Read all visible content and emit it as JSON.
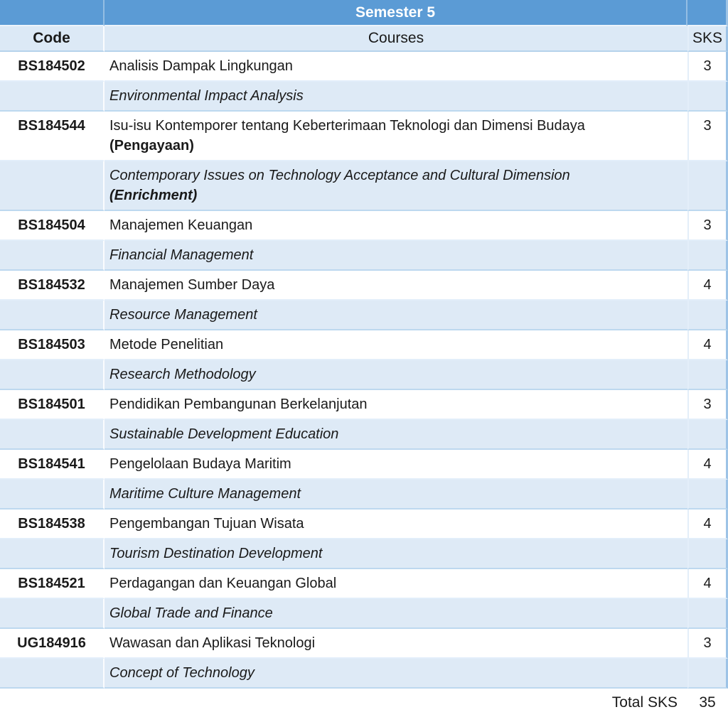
{
  "table": {
    "title": "Semester 5",
    "columns": [
      "Code",
      "Courses",
      "SKS"
    ],
    "rows": [
      {
        "code": "BS184502",
        "name": "Analisis Dampak Lingkungan",
        "name_note": "",
        "sks": "3",
        "translation": "Environmental Impact Analysis",
        "translation_note": ""
      },
      {
        "code": "BS184544",
        "name": "Isu-isu Kontemporer tentang Keberterimaan Teknologi dan Dimensi Budaya",
        "name_note": "(Pengayaan)",
        "sks": "3",
        "translation": "Contemporary Issues on Technology Acceptance and Cultural Dimension",
        "translation_note": "(Enrichment)"
      },
      {
        "code": "BS184504",
        "name": "Manajemen Keuangan",
        "name_note": "",
        "sks": "3",
        "translation": "Financial Management",
        "translation_note": ""
      },
      {
        "code": "BS184532",
        "name": "Manajemen Sumber Daya",
        "name_note": "",
        "sks": "4",
        "translation": "Resource Management",
        "translation_note": ""
      },
      {
        "code": "BS184503",
        "name": "Metode Penelitian",
        "name_note": "",
        "sks": "4",
        "translation": "Research Methodology",
        "translation_note": ""
      },
      {
        "code": "BS184501",
        "name": "Pendidikan Pembangunan Berkelanjutan",
        "name_note": "",
        "sks": "3",
        "translation": "Sustainable Development Education",
        "translation_note": ""
      },
      {
        "code": "BS184541",
        "name": "Pengelolaan Budaya Maritim",
        "name_note": "",
        "sks": "4",
        "translation": "Maritime Culture Management",
        "translation_note": ""
      },
      {
        "code": "BS184538",
        "name": "Pengembangan Tujuan Wisata",
        "name_note": "",
        "sks": "4",
        "translation": "Tourism Destination Development",
        "translation_note": ""
      },
      {
        "code": "BS184521",
        "name": "Perdagangan dan Keuangan Global",
        "name_note": "",
        "sks": "4",
        "translation": "Global Trade and Finance",
        "translation_note": ""
      },
      {
        "code": "UG184916",
        "name": "Wawasan dan Aplikasi Teknologi",
        "name_note": "",
        "sks": "3",
        "translation": "Concept of Technology",
        "translation_note": ""
      }
    ],
    "total_label": "Total SKS",
    "total_value": "35",
    "colors": {
      "header_blue": "#5B9BD5",
      "band_light_blue": "#DEEAF6",
      "header_band_light": "#DCE9F6",
      "outer_border_blue": "#9DC3E6",
      "title_text": "#FFFFFF",
      "body_text": "#1A1A1A"
    }
  }
}
